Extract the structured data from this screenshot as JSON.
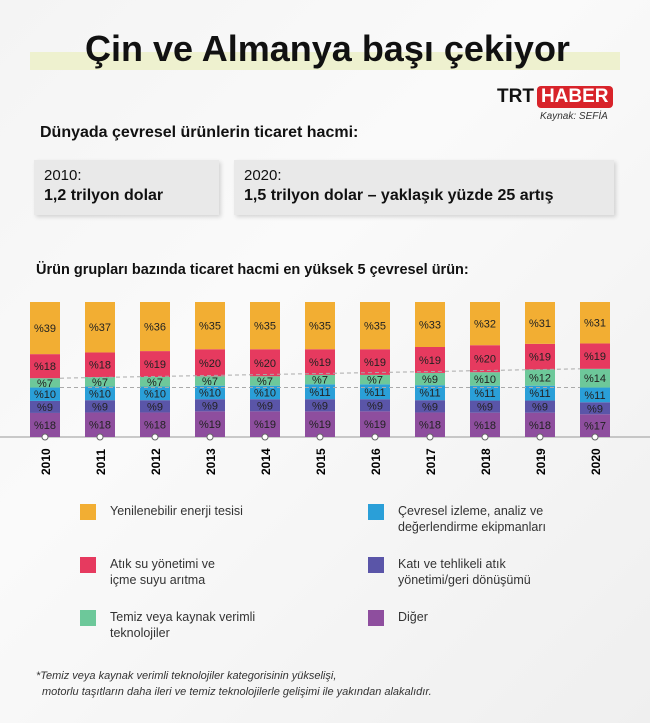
{
  "title": "Çin ve Almanya başı çekiyor",
  "logo": {
    "trt": "TRT",
    "haber": "HABER"
  },
  "source": "Kaynak: SEFİA",
  "subtitle": "Dünyada çevresel ürünlerin ticaret hacmi:",
  "box2010": {
    "year": "2010:",
    "value": "1,2 trilyon dolar"
  },
  "box2020": {
    "year": "2020:",
    "value": "1,5 trilyon dolar – yaklaşık yüzde 25 artış"
  },
  "footnote": [
    "*Temiz veya kaynak verimli teknolojiler kategorisinin yükselişi,",
    "motorlu taşıtların daha ileri ve temiz teknolojilerle gelişimi ile yakından alakalıdır."
  ],
  "chart_data": {
    "type": "bar",
    "stacked": true,
    "title": "Ürün grupları bazında ticaret hacmi en yüksek 5 çevresel ürün:",
    "categories": [
      "2010",
      "2011",
      "2012",
      "2013",
      "2014",
      "2015",
      "2016",
      "2017",
      "2018",
      "2019",
      "2020"
    ],
    "series": [
      {
        "name": "Diğer",
        "color": "#8E4E9E",
        "values": [
          18,
          18,
          18,
          19,
          19,
          19,
          19,
          18,
          18,
          18,
          17
        ]
      },
      {
        "name": "Katı ve tehlikeli atık yönetimi/geri dönüşümü",
        "color": "#5A55A8",
        "values": [
          9,
          9,
          9,
          9,
          9,
          9,
          9,
          9,
          9,
          9,
          9
        ]
      },
      {
        "name": "Çevresel izleme, analiz ve değerlendirme ekipmanları",
        "color": "#2A9FD8",
        "values": [
          10,
          10,
          10,
          10,
          10,
          11,
          11,
          11,
          11,
          11,
          11
        ]
      },
      {
        "name": "Temiz veya kaynak verimli teknolojiler",
        "color": "#6DC89A",
        "values": [
          7,
          7,
          7,
          7,
          7,
          7,
          7,
          9,
          10,
          12,
          14
        ]
      },
      {
        "name": "Atık su yönetimi ve içme suyu arıtma",
        "color": "#E63A5F",
        "values": [
          18,
          18,
          19,
          20,
          20,
          19,
          19,
          19,
          20,
          19,
          19
        ]
      },
      {
        "name": "Yenilenebilir enerji tesisi",
        "color": "#F2AE33",
        "values": [
          39,
          37,
          36,
          35,
          35,
          35,
          35,
          33,
          32,
          31,
          31
        ]
      }
    ],
    "value_prefix": "%"
  },
  "legend": [
    {
      "label": [
        "Yenilenebilir enerji tesisi"
      ],
      "s": 5
    },
    {
      "label": [
        "Çevresel izleme, analiz ve",
        "değerlendirme ekipmanları"
      ],
      "s": 2
    },
    {
      "label": [
        "Atık su yönetimi ve",
        "içme suyu arıtma"
      ],
      "s": 4
    },
    {
      "label": [
        "Katı ve tehlikeli atık",
        "yönetimi/geri dönüşümü"
      ],
      "s": 1
    },
    {
      "label": [
        "Temiz veya kaynak verimli",
        "teknolojiler"
      ],
      "s": 3
    },
    {
      "label": [
        "Diğer"
      ],
      "s": 0
    }
  ]
}
